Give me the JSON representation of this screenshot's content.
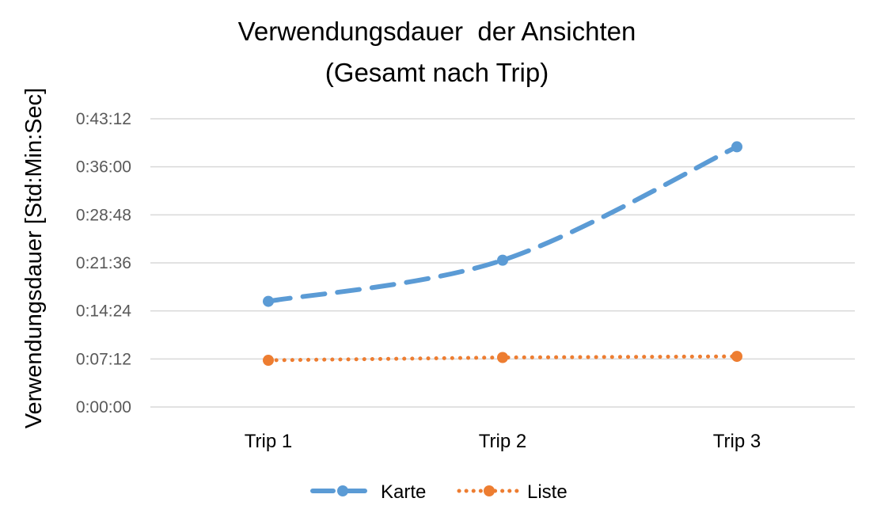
{
  "chart_data": {
    "type": "line",
    "title": "Verwendungsdauer  der Ansichten",
    "subtitle": "(Gesamt nach Trip)",
    "xlabel": "",
    "ylabel": "Verwendungsdauer [Std:Min:Sec]",
    "categories": [
      "Trip 1",
      "Trip 2",
      "Trip 3"
    ],
    "y_unit": "seconds",
    "ylim": [
      0,
      2592
    ],
    "yticks": [
      0,
      432,
      864,
      1296,
      1728,
      2160,
      2592
    ],
    "ytick_labels": [
      "0:00:00",
      "0:07:12",
      "0:14:24",
      "0:21:36",
      "0:28:48",
      "0:36:00",
      "0:43:12"
    ],
    "grid": true,
    "legend_position": "bottom",
    "series": [
      {
        "name": "Karte",
        "values": [
          950,
          1320,
          2340
        ],
        "color": "#5b9bd5",
        "line_style": "dashed",
        "marker": "circle"
      },
      {
        "name": "Liste",
        "values": [
          420,
          445,
          455
        ],
        "color": "#ed7d31",
        "line_style": "dotted",
        "marker": "circle"
      }
    ]
  }
}
